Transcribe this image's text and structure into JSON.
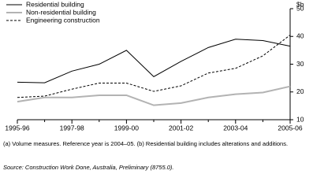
{
  "chart_data": {
    "type": "line",
    "y_label": "$b",
    "categories": [
      "1995-96",
      null,
      "1997-98",
      null,
      "1999-00",
      null,
      "2001-02",
      null,
      "2003-04",
      null,
      "2005-06"
    ],
    "series": [
      {
        "name": "Residential building",
        "color": "#000000",
        "dashed": false,
        "width": 1,
        "values": [
          23.5,
          23.3,
          27.5,
          30,
          35,
          25.5,
          31,
          36,
          39,
          38.5,
          36.5
        ]
      },
      {
        "name": "Non-residential building",
        "color": "#b3b3b3",
        "dashed": false,
        "width": 2,
        "values": [
          16.5,
          18,
          18,
          18.8,
          18.8,
          15.2,
          16,
          18,
          19.2,
          19.8,
          22
        ]
      },
      {
        "name": "Engineering construction",
        "color": "#000000",
        "dashed": true,
        "width": 1,
        "values": [
          18,
          18.5,
          21,
          23.2,
          23.2,
          20.2,
          22.2,
          26.8,
          28.5,
          33,
          40.5
        ]
      }
    ],
    "ylim": [
      10,
      50
    ],
    "yticks": [
      10,
      20,
      30,
      40,
      50
    ],
    "legend": "top-left",
    "notes": "(a) Volume measures. Reference year is 2004–05. (b) Residential building includes alterations and additions.",
    "source": "Source: Construction Work Done, Australia, Preliminary (8755.0)."
  }
}
